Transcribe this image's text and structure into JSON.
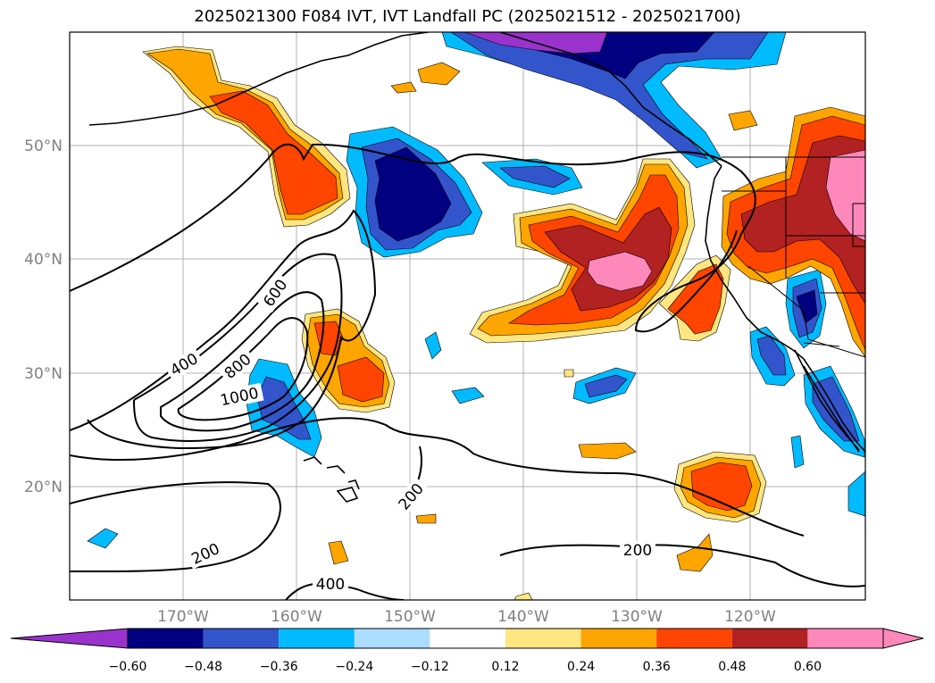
{
  "title": "2025021300 F084 IVT, IVT Landfall PC (2025021512 - 2025021700)",
  "lat_labels": [
    "50°N",
    "40°N",
    "30°N",
    "20°N"
  ],
  "lon_labels": [
    "170°W",
    "160°W",
    "150°W",
    "140°W",
    "130°W",
    "120°W"
  ],
  "contour_levels": [
    "200",
    "400",
    "600",
    "800",
    "1000"
  ],
  "contour_labels": [
    "400",
    "600",
    "800",
    "1000",
    "200",
    "200",
    "200",
    "400"
  ],
  "colorbar": {
    "ticks": [
      "−0.60",
      "−0.48",
      "−0.36",
      "−0.24",
      "−0.12",
      "0.12",
      "0.24",
      "0.36",
      "0.48",
      "0.60"
    ],
    "colors": [
      "#9933cc",
      "#000080",
      "#3355cc",
      "#00bbff",
      "#aaddff",
      "#ffffff",
      "#ffe680",
      "#ffa500",
      "#ff4500",
      "#b22222",
      "#ff88bb"
    ]
  },
  "colors": {
    "neg_060": "#9933cc",
    "neg_048": "#000080",
    "neg_036": "#3355cc",
    "neg_024": "#00bbff",
    "neg_012": "#aaddff",
    "pos_012": "#ffe680",
    "pos_024": "#ffa500",
    "pos_036": "#ff4500",
    "pos_048": "#b22222",
    "pos_060": "#ff88bb",
    "gridline": "#b0b0b0",
    "tick_label": "#808080"
  }
}
